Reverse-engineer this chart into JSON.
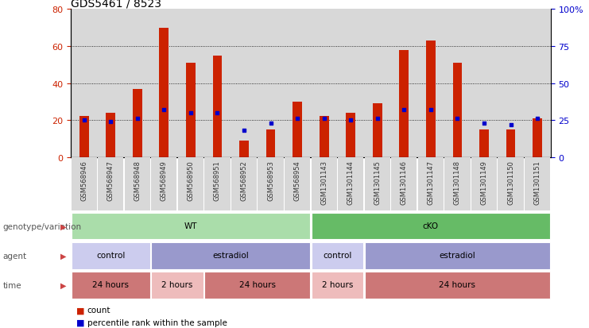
{
  "title": "GDS5461 / 8523",
  "samples": [
    "GSM568946",
    "GSM568947",
    "GSM568948",
    "GSM568949",
    "GSM568950",
    "GSM568951",
    "GSM568952",
    "GSM568953",
    "GSM568954",
    "GSM1301143",
    "GSM1301144",
    "GSM1301145",
    "GSM1301146",
    "GSM1301147",
    "GSM1301148",
    "GSM1301149",
    "GSM1301150",
    "GSM1301151"
  ],
  "counts": [
    22,
    24,
    37,
    70,
    51,
    55,
    9,
    15,
    30,
    22,
    24,
    29,
    58,
    63,
    51,
    15,
    15,
    21
  ],
  "percentile_ranks": [
    25,
    24,
    26,
    32,
    30,
    30,
    18,
    23,
    26,
    26,
    25,
    26,
    32,
    32,
    26,
    23,
    22,
    26
  ],
  "ylim_left": [
    0,
    80
  ],
  "ylim_right": [
    0,
    100
  ],
  "yticks_left": [
    0,
    20,
    40,
    60,
    80
  ],
  "yticks_right": [
    0,
    25,
    50,
    75,
    100
  ],
  "bar_color": "#cc2200",
  "dot_color": "#0000cc",
  "grid_color": "#000000",
  "bg_color": "#ffffff",
  "tick_label_color_left": "#cc2200",
  "tick_label_color_right": "#0000cc",
  "col_bg_color": "#d8d8d8",
  "genotype_row": {
    "label": "genotype/variation",
    "groups": [
      {
        "text": "WT",
        "start": 0,
        "end": 9,
        "color": "#aaddaa"
      },
      {
        "text": "cKO",
        "start": 9,
        "end": 18,
        "color": "#66bb66"
      }
    ]
  },
  "agent_row": {
    "label": "agent",
    "groups": [
      {
        "text": "control",
        "start": 0,
        "end": 3,
        "color": "#ccccee"
      },
      {
        "text": "estradiol",
        "start": 3,
        "end": 9,
        "color": "#9999cc"
      },
      {
        "text": "control",
        "start": 9,
        "end": 11,
        "color": "#ccccee"
      },
      {
        "text": "estradiol",
        "start": 11,
        "end": 18,
        "color": "#9999cc"
      }
    ]
  },
  "time_row": {
    "label": "time",
    "groups": [
      {
        "text": "24 hours",
        "start": 0,
        "end": 3,
        "color": "#cc7777"
      },
      {
        "text": "2 hours",
        "start": 3,
        "end": 5,
        "color": "#eebcbc"
      },
      {
        "text": "24 hours",
        "start": 5,
        "end": 9,
        "color": "#cc7777"
      },
      {
        "text": "2 hours",
        "start": 9,
        "end": 11,
        "color": "#eebcbc"
      },
      {
        "text": "24 hours",
        "start": 11,
        "end": 18,
        "color": "#cc7777"
      }
    ]
  },
  "legend_count_color": "#cc2200",
  "legend_dot_color": "#0000cc",
  "xaxis_label_color": "#333333",
  "title_fontsize": 10,
  "bar_width": 0.35,
  "arrow_color": "#cc4444",
  "label_color": "#555555"
}
